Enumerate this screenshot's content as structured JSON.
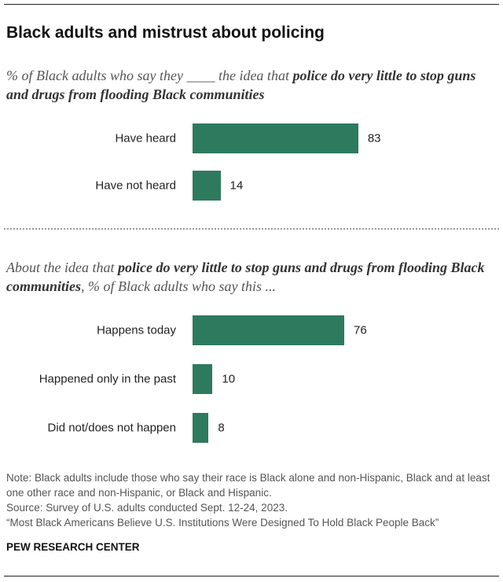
{
  "title": "Black adults and mistrust about policing",
  "chart_data": [
    {
      "type": "bar",
      "orientation": "horizontal",
      "subtitle": [
        "% of Black adults who say they ____ the idea that ",
        "police do very little to stop guns and drugs from flooding Black communities"
      ],
      "categories": [
        "Have heard",
        "Have not heard"
      ],
      "values": [
        83,
        14
      ],
      "color": "#2e7a5f",
      "xlim": [
        0,
        100
      ]
    },
    {
      "type": "bar",
      "orientation": "horizontal",
      "subtitle": [
        "About the idea that ",
        "police do very little to stop guns and drugs from flooding Black communities",
        ", % of Black adults who say this ..."
      ],
      "categories": [
        "Happens today",
        "Happened only in the past",
        "Did not/does not happen"
      ],
      "values": [
        76,
        10,
        8
      ],
      "color": "#2e7a5f",
      "xlim": [
        0,
        100
      ]
    }
  ],
  "notes": [
    "Note: Black adults include those who say their race is Black alone and non-Hispanic, Black and at least one other race and non-Hispanic, or Black and Hispanic.",
    "Source: Survey of U.S. adults conducted Sept. 12-24, 2023.",
    "“Most Black Americans Believe U.S. Institutions Were Designed To Hold Black People Back”"
  ],
  "source_org": "PEW RESEARCH CENTER"
}
